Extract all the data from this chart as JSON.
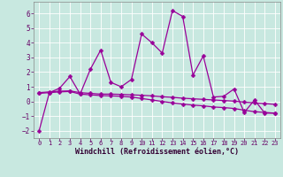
{
  "xlabel": "Windchill (Refroidissement éolien,°C)",
  "background_color": "#c8e8e0",
  "grid_color": "#b0d8d0",
  "line_color": "#990099",
  "x_values": [
    0,
    1,
    2,
    3,
    4,
    5,
    6,
    7,
    8,
    9,
    10,
    11,
    12,
    13,
    14,
    15,
    16,
    17,
    18,
    19,
    20,
    21,
    22,
    23
  ],
  "series1": [
    -2.0,
    0.6,
    0.9,
    1.7,
    0.5,
    2.2,
    3.5,
    1.3,
    1.0,
    1.5,
    4.6,
    4.0,
    3.3,
    6.2,
    5.8,
    1.8,
    3.1,
    0.3,
    0.35,
    0.85,
    -0.75,
    0.1,
    -0.8,
    -0.8
  ],
  "series2": [
    0.6,
    0.65,
    0.7,
    0.72,
    0.6,
    0.55,
    0.5,
    0.5,
    0.48,
    0.45,
    0.42,
    0.38,
    0.32,
    0.28,
    0.22,
    0.18,
    0.14,
    0.1,
    0.06,
    0.02,
    -0.05,
    -0.1,
    -0.15,
    -0.2
  ],
  "series3": [
    0.55,
    0.6,
    0.65,
    0.68,
    0.5,
    0.45,
    0.4,
    0.38,
    0.35,
    0.3,
    0.2,
    0.1,
    -0.0,
    -0.1,
    -0.18,
    -0.25,
    -0.3,
    -0.38,
    -0.42,
    -0.48,
    -0.6,
    -0.7,
    -0.75,
    -0.8
  ],
  "ylim": [
    -2.5,
    6.8
  ],
  "xlim": [
    -0.5,
    23.5
  ],
  "yticks": [
    -2,
    -1,
    0,
    1,
    2,
    3,
    4,
    5,
    6
  ],
  "xticks": [
    0,
    1,
    2,
    3,
    4,
    5,
    6,
    7,
    8,
    9,
    10,
    11,
    12,
    13,
    14,
    15,
    16,
    17,
    18,
    19,
    20,
    21,
    22,
    23
  ]
}
